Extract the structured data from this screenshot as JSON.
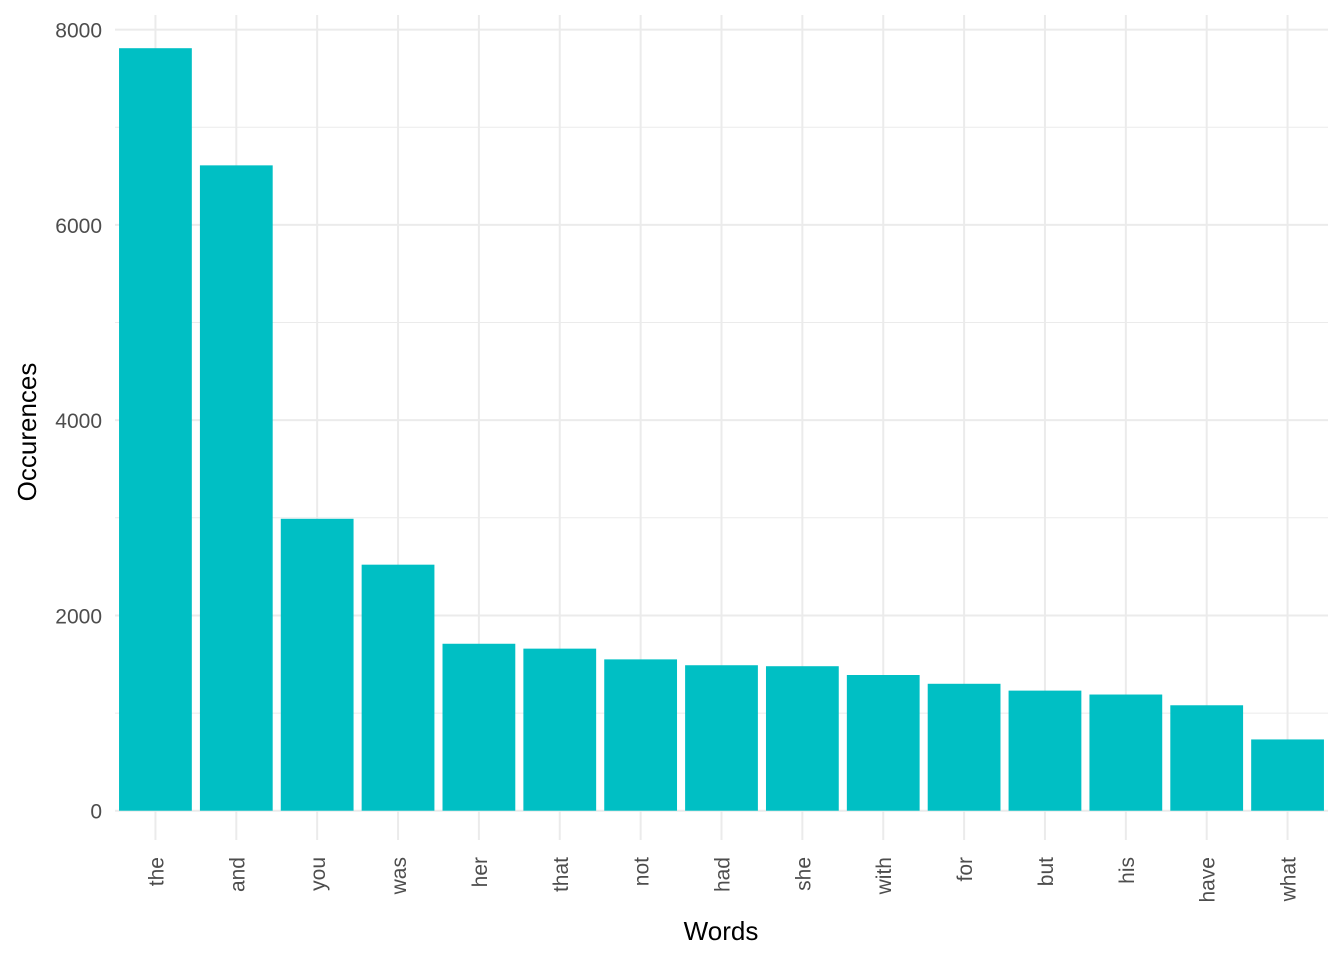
{
  "chart_data": {
    "type": "bar",
    "title": "",
    "xlabel": "Words",
    "ylabel": "Occurences",
    "categories": [
      "the",
      "and",
      "you",
      "was",
      "her",
      "that",
      "not",
      "had",
      "she",
      "with",
      "for",
      "but",
      "his",
      "have",
      "what"
    ],
    "values": [
      7810,
      6610,
      2990,
      2520,
      1710,
      1660,
      1550,
      1490,
      1480,
      1390,
      1300,
      1230,
      1190,
      1080,
      730
    ],
    "ylim": [
      -300,
      8150
    ],
    "yticks": [
      0,
      2000,
      4000,
      6000,
      8000
    ],
    "ytick_labels": [
      "0",
      "2000",
      "4000",
      "6000",
      "8000"
    ],
    "grid": true,
    "legend": "none",
    "colors": {
      "bar": "#00BFC4",
      "grid": "#ebebeb",
      "tick_text": "#4d4d4d",
      "title_text": "#000000"
    }
  }
}
